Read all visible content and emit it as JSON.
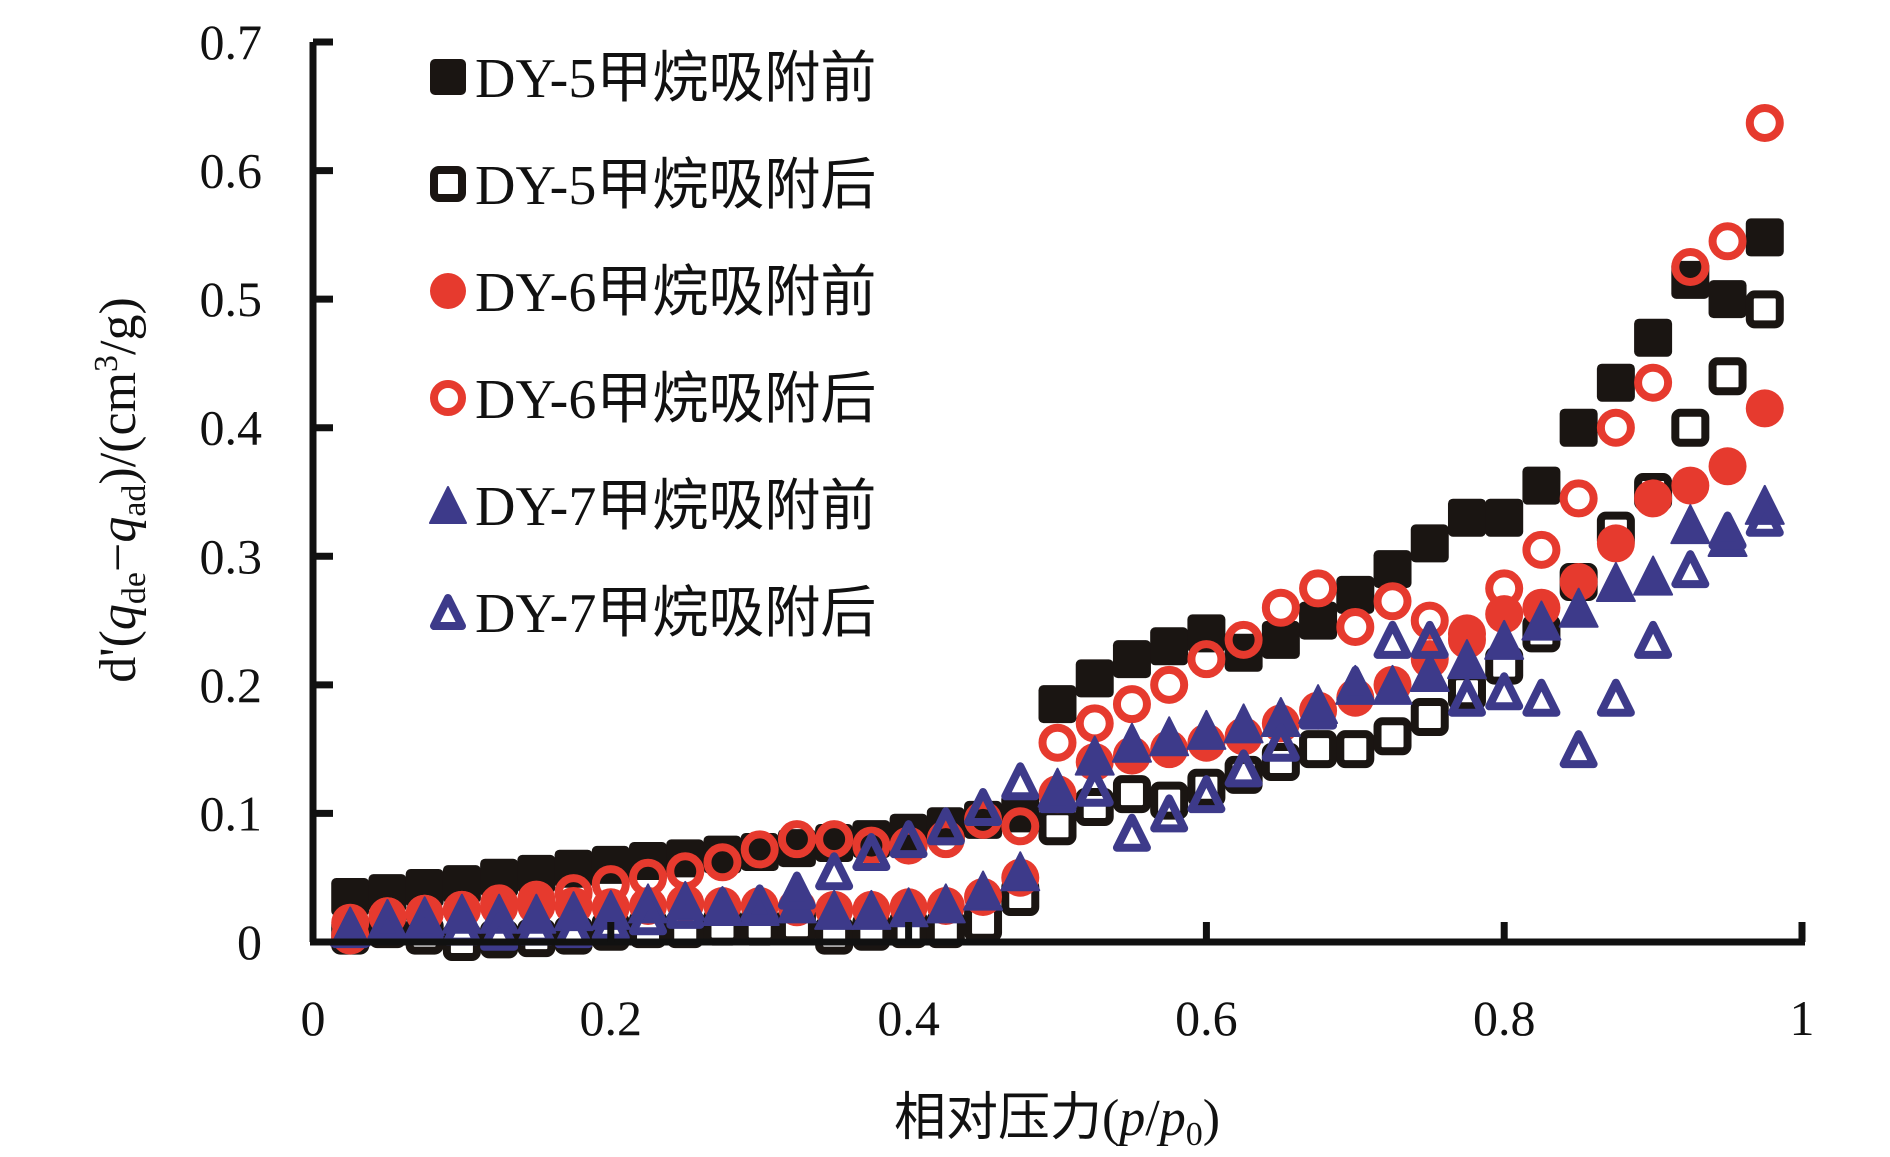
{
  "chart_data": {
    "type": "scatter",
    "title": "",
    "xlabel": "相对压力(p/p0)",
    "xlabel_parts": {
      "prefix": "相对压力(",
      "p": "p",
      "slash": "/",
      "p0": "p",
      "p0_sub": "0",
      "suffix": ")"
    },
    "ylabel": "d'(q_de−q_ad)/(cm³/g)",
    "ylabel_parts": {
      "d": "d'(",
      "q1": "q",
      "sub1": "de",
      "minus": "−",
      "q2": "q",
      "sub2": "ad",
      "unit": ")/(cm",
      "sup": "3",
      "unit_end": "/g)"
    },
    "xlim": [
      0,
      1
    ],
    "ylim": [
      0,
      0.7
    ],
    "xticks": [
      "0",
      "0.2",
      "0.4",
      "0.6",
      "0.8",
      "1"
    ],
    "xtick_values": [
      0,
      0.2,
      0.4,
      0.6,
      0.8,
      1
    ],
    "yticks": [
      "0",
      "0.1",
      "0.2",
      "0.3",
      "0.4",
      "0.5",
      "0.6",
      "0.7"
    ],
    "ytick_values": [
      0,
      0.1,
      0.2,
      0.3,
      0.4,
      0.5,
      0.6,
      0.7
    ],
    "grid": false,
    "legend_position": "top-left",
    "x": [
      0.025,
      0.05,
      0.075,
      0.1,
      0.125,
      0.15,
      0.175,
      0.2,
      0.225,
      0.25,
      0.275,
      0.3,
      0.325,
      0.35,
      0.375,
      0.4,
      0.425,
      0.45,
      0.475,
      0.5,
      0.525,
      0.55,
      0.575,
      0.6,
      0.625,
      0.65,
      0.675,
      0.7,
      0.725,
      0.75,
      0.775,
      0.8,
      0.825,
      0.85,
      0.875,
      0.9,
      0.925,
      0.95,
      0.975
    ],
    "series": [
      {
        "name": "DY-5甲烷吸附前",
        "marker": "square-filled",
        "color": "#1a1512",
        "values": [
          0.035,
          0.038,
          0.042,
          0.045,
          0.05,
          0.053,
          0.057,
          0.06,
          0.063,
          0.065,
          0.068,
          0.07,
          0.073,
          0.077,
          0.08,
          0.085,
          0.09,
          0.095,
          0.1,
          0.185,
          0.205,
          0.22,
          0.23,
          0.24,
          0.225,
          0.235,
          0.25,
          0.27,
          0.29,
          0.31,
          0.33,
          0.33,
          0.355,
          0.4,
          0.435,
          0.47,
          0.515,
          0.5,
          0.548
        ]
      },
      {
        "name": "DY-5甲烷吸附后",
        "marker": "square-open",
        "color": "#1a1512",
        "values": [
          0.005,
          0.01,
          0.005,
          0.0,
          0.002,
          0.003,
          0.005,
          0.008,
          0.01,
          0.01,
          0.012,
          0.012,
          0.013,
          0.005,
          0.008,
          0.01,
          0.01,
          0.015,
          0.035,
          0.09,
          0.105,
          0.115,
          0.11,
          0.12,
          0.13,
          0.14,
          0.15,
          0.15,
          0.16,
          0.175,
          0.195,
          0.215,
          0.24,
          0.28,
          0.32,
          0.35,
          0.4,
          0.44,
          0.492
        ]
      },
      {
        "name": "DY-6甲烷吸附前",
        "marker": "circle-filled",
        "color": "#e63a2e",
        "values": [
          0.015,
          0.02,
          0.022,
          0.025,
          0.027,
          0.028,
          0.028,
          0.027,
          0.028,
          0.03,
          0.028,
          0.028,
          0.027,
          0.025,
          0.025,
          0.027,
          0.028,
          0.035,
          0.05,
          0.115,
          0.14,
          0.145,
          0.15,
          0.155,
          0.16,
          0.17,
          0.18,
          0.19,
          0.2,
          0.22,
          0.24,
          0.255,
          0.26,
          0.28,
          0.31,
          0.345,
          0.355,
          0.37,
          0.415
        ]
      },
      {
        "name": "DY-6甲烷吸附后",
        "marker": "circle-open",
        "color": "#e63a2e",
        "values": [
          0.005,
          0.02,
          0.022,
          0.025,
          0.03,
          0.033,
          0.038,
          0.045,
          0.05,
          0.055,
          0.062,
          0.072,
          0.08,
          0.08,
          0.075,
          0.075,
          0.08,
          0.095,
          0.09,
          0.155,
          0.17,
          0.185,
          0.2,
          0.22,
          0.235,
          0.26,
          0.275,
          0.245,
          0.265,
          0.25,
          0.235,
          0.275,
          0.305,
          0.345,
          0.4,
          0.435,
          0.525,
          0.545,
          0.637
        ]
      },
      {
        "name": "DY-7甲烷吸附前",
        "marker": "triangle-filled",
        "color": "#3d3a8a",
        "values": [
          0.012,
          0.018,
          0.02,
          0.022,
          0.022,
          0.022,
          0.024,
          0.025,
          0.03,
          0.032,
          0.028,
          0.028,
          0.03,
          0.025,
          0.025,
          0.027,
          0.03,
          0.04,
          0.055,
          0.12,
          0.145,
          0.155,
          0.16,
          0.165,
          0.17,
          0.175,
          0.185,
          0.2,
          0.2,
          0.21,
          0.22,
          0.235,
          0.25,
          0.26,
          0.28,
          0.285,
          0.325,
          0.315,
          0.34
        ]
      },
      {
        "name": "DY-7甲烷吸附后",
        "marker": "triangle-open",
        "color": "#3d3a8a",
        "values": [
          0.01,
          0.015,
          0.015,
          0.012,
          0.008,
          0.012,
          0.01,
          0.015,
          0.02,
          0.025,
          0.028,
          0.03,
          0.04,
          0.055,
          0.07,
          0.08,
          0.09,
          0.105,
          0.125,
          0.115,
          0.12,
          0.085,
          0.1,
          0.115,
          0.135,
          0.155,
          0.18,
          0.2,
          0.235,
          0.235,
          0.19,
          0.195,
          0.19,
          0.15,
          0.19,
          0.235,
          0.29,
          0.32,
          0.33
        ]
      }
    ]
  }
}
